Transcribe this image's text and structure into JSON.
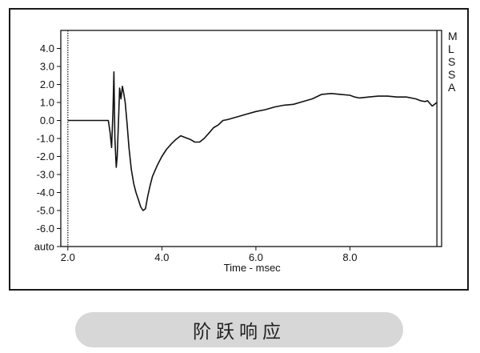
{
  "chart_data": {
    "type": "line",
    "xlabel": "Time - msec",
    "ylabel": "",
    "xlim": [
      1.85,
      9.95
    ],
    "ylim": [
      -7.0,
      5.0
    ],
    "x_ticks": [
      {
        "value": 2.0,
        "label": "2.0"
      },
      {
        "value": 4.0,
        "label": "4.0"
      },
      {
        "value": 6.0,
        "label": "6.0"
      },
      {
        "value": 8.0,
        "label": "8.0"
      }
    ],
    "y_ticks": [
      {
        "value": 4.0,
        "label": "4.0"
      },
      {
        "value": 3.0,
        "label": "3.0"
      },
      {
        "value": 2.0,
        "label": "2.0"
      },
      {
        "value": 1.0,
        "label": "1.0"
      },
      {
        "value": 0.0,
        "label": "0.0"
      },
      {
        "value": -1.0,
        "label": "-1.0"
      },
      {
        "value": -2.0,
        "label": "-2.0"
      },
      {
        "value": -3.0,
        "label": "-3.0"
      },
      {
        "value": -4.0,
        "label": "-4.0"
      },
      {
        "value": -5.0,
        "label": "-5.0"
      },
      {
        "value": -6.0,
        "label": "-6.0"
      },
      {
        "value": -7.0,
        "label": "auto"
      }
    ],
    "cursor_x": 2.0,
    "end_marker_x": 9.85,
    "side_labels": [
      "M",
      "L",
      "S",
      "S",
      "A"
    ],
    "grid": false,
    "legend": "none",
    "line_color": "#111111",
    "series": [
      {
        "x": [
          2.0,
          2.5,
          2.86,
          2.9,
          2.93,
          2.96,
          2.98,
          3.0,
          3.03,
          3.05,
          3.08,
          3.1,
          3.13,
          3.16,
          3.19,
          3.22,
          3.26,
          3.3,
          3.35,
          3.4,
          3.45,
          3.5,
          3.55,
          3.6,
          3.65,
          3.7,
          3.75,
          3.8,
          3.9,
          4.0,
          4.1,
          4.2,
          4.3,
          4.4,
          4.5,
          4.6,
          4.7,
          4.8,
          4.9,
          5.0,
          5.1,
          5.2,
          5.3,
          5.4,
          5.6,
          5.8,
          6.0,
          6.2,
          6.4,
          6.6,
          6.8,
          7.0,
          7.2,
          7.4,
          7.6,
          7.8,
          8.0,
          8.1,
          8.2,
          8.4,
          8.6,
          8.8,
          9.0,
          9.2,
          9.4,
          9.5,
          9.6,
          9.65,
          9.7,
          9.75,
          9.8,
          9.85
        ],
        "y": [
          0.0,
          0.0,
          0.0,
          -0.7,
          -1.5,
          0.5,
          2.7,
          -1.0,
          -2.6,
          -2.0,
          0.2,
          1.8,
          1.2,
          1.9,
          1.5,
          1.0,
          -0.2,
          -1.5,
          -2.7,
          -3.5,
          -4.0,
          -4.4,
          -4.8,
          -5.0,
          -4.9,
          -4.2,
          -3.6,
          -3.1,
          -2.5,
          -2.0,
          -1.6,
          -1.3,
          -1.05,
          -0.85,
          -0.95,
          -1.05,
          -1.2,
          -1.2,
          -1.0,
          -0.7,
          -0.4,
          -0.25,
          0.0,
          0.05,
          0.2,
          0.35,
          0.5,
          0.6,
          0.75,
          0.85,
          0.9,
          1.05,
          1.2,
          1.45,
          1.5,
          1.45,
          1.4,
          1.3,
          1.25,
          1.3,
          1.35,
          1.35,
          1.3,
          1.3,
          1.2,
          1.1,
          1.05,
          1.1,
          0.95,
          0.8,
          0.9,
          1.0
        ]
      }
    ]
  },
  "caption": "阶跃响应"
}
